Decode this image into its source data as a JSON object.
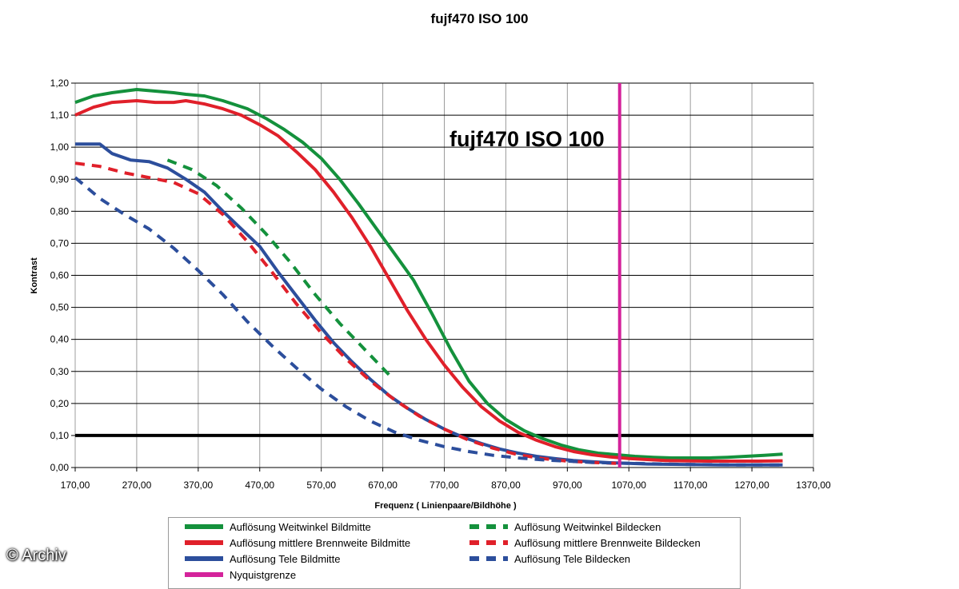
{
  "chart_data": {
    "type": "line",
    "title": "fujf470   ISO 100",
    "annotation": "fujf470   ISO 100",
    "xlabel": "Frequenz ( Linienpaare/Bildhöhe )",
    "ylabel": "Kontrast",
    "xlim": [
      170,
      1370
    ],
    "ylim": [
      0,
      1.2
    ],
    "x_ticks": [
      "170,00",
      "270,00",
      "370,00",
      "470,00",
      "570,00",
      "670,00",
      "770,00",
      "870,00",
      "970,00",
      "1070,00",
      "1170,00",
      "1270,00",
      "1370,00"
    ],
    "y_ticks": [
      "0,00",
      "0,10",
      "0,20",
      "0,30",
      "0,40",
      "0,50",
      "0,60",
      "0,70",
      "0,80",
      "0,90",
      "1,00",
      "1,10",
      "1,20"
    ],
    "grid": true,
    "legend_position": "bottom",
    "reference_line": {
      "y": 0.1,
      "color": "#000000"
    },
    "series": [
      {
        "name": "Auflösung Weitwinkel Bildmitte",
        "color": "#14913c",
        "dash": false,
        "x": [
          170,
          200,
          230,
          270,
          300,
          330,
          350,
          380,
          410,
          450,
          480,
          510,
          540,
          570,
          600,
          630,
          660,
          690,
          720,
          750,
          780,
          810,
          840,
          870,
          900,
          930,
          960,
          990,
          1020,
          1050,
          1080,
          1110,
          1140,
          1170,
          1200,
          1230,
          1260,
          1290,
          1320
        ],
        "y": [
          1.14,
          1.16,
          1.17,
          1.18,
          1.175,
          1.17,
          1.165,
          1.16,
          1.145,
          1.12,
          1.09,
          1.055,
          1.015,
          0.965,
          0.9,
          0.825,
          0.745,
          0.665,
          0.585,
          0.48,
          0.37,
          0.27,
          0.2,
          0.15,
          0.115,
          0.09,
          0.07,
          0.055,
          0.045,
          0.04,
          0.035,
          0.032,
          0.03,
          0.03,
          0.03,
          0.032,
          0.035,
          0.038,
          0.042
        ]
      },
      {
        "name": "Auflösung mittlere Brennweite Bildmitte",
        "color": "#e0202a",
        "dash": false,
        "x": [
          170,
          200,
          230,
          270,
          300,
          330,
          350,
          380,
          410,
          440,
          470,
          500,
          530,
          560,
          590,
          620,
          650,
          680,
          710,
          740,
          770,
          800,
          830,
          860,
          890,
          920,
          950,
          980,
          1010,
          1040,
          1070,
          1100,
          1130,
          1160,
          1200,
          1240,
          1280,
          1320
        ],
        "y": [
          1.1,
          1.125,
          1.14,
          1.145,
          1.14,
          1.14,
          1.145,
          1.135,
          1.12,
          1.1,
          1.07,
          1.035,
          0.985,
          0.93,
          0.86,
          0.78,
          0.69,
          0.59,
          0.49,
          0.4,
          0.32,
          0.25,
          0.19,
          0.145,
          0.11,
          0.085,
          0.065,
          0.05,
          0.04,
          0.033,
          0.028,
          0.025,
          0.022,
          0.021,
          0.02,
          0.02,
          0.02,
          0.021
        ]
      },
      {
        "name": "Auflösung Tele Bildmitte",
        "color": "#2c4e9c",
        "dash": false,
        "x": [
          170,
          190,
          210,
          230,
          260,
          290,
          320,
          350,
          380,
          410,
          440,
          470,
          500,
          530,
          560,
          590,
          620,
          650,
          680,
          710,
          740,
          770,
          800,
          830,
          860,
          890,
          920,
          950,
          980,
          1010,
          1040,
          1070,
          1100,
          1140,
          1180,
          1220,
          1270,
          1320
        ],
        "y": [
          1.01,
          1.01,
          1.01,
          0.98,
          0.96,
          0.955,
          0.935,
          0.9,
          0.86,
          0.8,
          0.745,
          0.69,
          0.61,
          0.535,
          0.46,
          0.39,
          0.33,
          0.275,
          0.225,
          0.185,
          0.15,
          0.12,
          0.095,
          0.075,
          0.058,
          0.045,
          0.035,
          0.028,
          0.022,
          0.018,
          0.015,
          0.013,
          0.011,
          0.01,
          0.009,
          0.008,
          0.008,
          0.008
        ]
      },
      {
        "name": "Nyquistgrenze",
        "color": "#d4239b",
        "dash": false,
        "vertical_line_x": 1055
      },
      {
        "name": "Auflösung Weitwinkel Bildecken",
        "color": "#14913c",
        "dash": true,
        "x": [
          320,
          360,
          400,
          440,
          480,
          520,
          560,
          600,
          640,
          680
        ],
        "y": [
          0.96,
          0.93,
          0.88,
          0.81,
          0.73,
          0.64,
          0.54,
          0.45,
          0.37,
          0.29
        ]
      },
      {
        "name": "Auflösung mittlere Brennweite Bildecken",
        "color": "#e0202a",
        "dash": true,
        "x": [
          170,
          210,
          250,
          290,
          330,
          370,
          410,
          450,
          490,
          530,
          570,
          610,
          650,
          690,
          730,
          770,
          810,
          850,
          890,
          930,
          970,
          1010,
          1050
        ],
        "y": [
          0.95,
          0.94,
          0.92,
          0.905,
          0.89,
          0.855,
          0.79,
          0.705,
          0.61,
          0.51,
          0.42,
          0.34,
          0.27,
          0.21,
          0.16,
          0.12,
          0.085,
          0.06,
          0.04,
          0.028,
          0.02,
          0.016,
          0.013
        ]
      },
      {
        "name": "Auflösung Tele Bildecken",
        "color": "#2c4e9c",
        "dash": true,
        "x": [
          170,
          210,
          250,
          290,
          330,
          370,
          410,
          450,
          490,
          530,
          570,
          610,
          650,
          690,
          730,
          770,
          810,
          850,
          890,
          930,
          970,
          1010,
          1050,
          1100,
          1150,
          1200,
          1260,
          1320
        ],
        "y": [
          0.905,
          0.84,
          0.79,
          0.745,
          0.685,
          0.615,
          0.54,
          0.455,
          0.38,
          0.31,
          0.245,
          0.19,
          0.145,
          0.11,
          0.085,
          0.065,
          0.05,
          0.038,
          0.03,
          0.024,
          0.02,
          0.016,
          0.014,
          0.012,
          0.01,
          0.009,
          0.008,
          0.008
        ]
      }
    ]
  },
  "legend": {
    "items": [
      {
        "label": "Auflösung Weitwinkel Bildmitte",
        "color": "#14913c",
        "dash": false
      },
      {
        "label": "Auflösung Weitwinkel Bildecken",
        "color": "#14913c",
        "dash": true
      },
      {
        "label": "Auflösung mittlere Brennweite Bildmitte",
        "color": "#e0202a",
        "dash": false
      },
      {
        "label": "Auflösung mittlere Brennweite Bildecken",
        "color": "#e0202a",
        "dash": true
      },
      {
        "label": "Auflösung Tele Bildmitte",
        "color": "#2c4e9c",
        "dash": false
      },
      {
        "label": "Auflösung Tele Bildecken",
        "color": "#2c4e9c",
        "dash": true
      },
      {
        "label": "Nyquistgrenze",
        "color": "#d4239b",
        "dash": false
      }
    ]
  },
  "watermark": "© Archiv"
}
